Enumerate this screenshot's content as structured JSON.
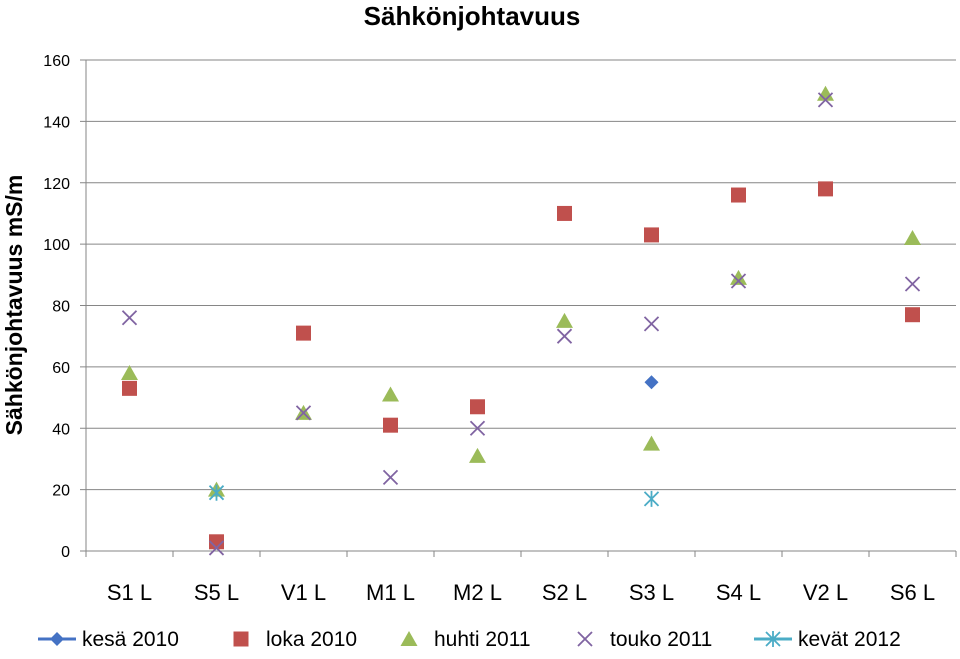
{
  "chart_data": {
    "type": "scatter",
    "title": "Sähkönjohtavuus",
    "ylabel": "Sähkönjohtavuus mS/m",
    "xlabel": "",
    "ylim": [
      0,
      160
    ],
    "yticks": [
      0,
      20,
      40,
      60,
      80,
      100,
      120,
      140,
      160
    ],
    "grid": "horizontal",
    "legend_position": "bottom",
    "categories": [
      "S1 L",
      "S5 L",
      "V1 L",
      "M1 L",
      "M2 L",
      "S2 L",
      "S3 L",
      "S4 L",
      "V2 L",
      "S6 L"
    ],
    "series": [
      {
        "name": "kesä 2010",
        "marker": "diamond",
        "color": "#4472C4",
        "values": [
          null,
          null,
          null,
          null,
          null,
          null,
          55,
          null,
          null,
          null
        ]
      },
      {
        "name": "loka 2010",
        "marker": "square",
        "color": "#C0504D",
        "values": [
          53,
          3,
          71,
          41,
          47,
          110,
          103,
          116,
          118,
          77
        ]
      },
      {
        "name": "huhti 2011",
        "marker": "triangle",
        "color": "#9BBB59",
        "values": [
          58,
          20,
          45,
          51,
          31,
          75,
          35,
          89,
          149,
          102
        ]
      },
      {
        "name": "touko 2011",
        "marker": "x",
        "color": "#8064A2",
        "values": [
          76,
          1,
          45,
          24,
          40,
          70,
          74,
          88,
          147,
          87
        ]
      },
      {
        "name": "kevät 2012",
        "marker": "star",
        "color": "#4BACC6",
        "values": [
          null,
          19,
          null,
          null,
          null,
          null,
          17,
          null,
          null,
          null
        ]
      }
    ]
  }
}
